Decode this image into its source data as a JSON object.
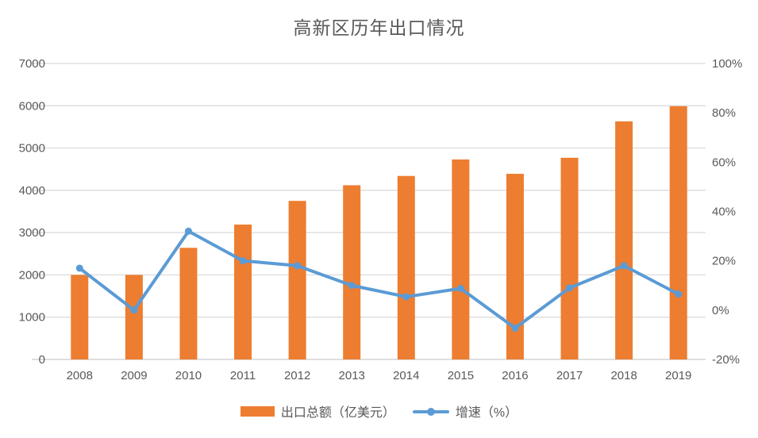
{
  "title": "高新区历年出口情况",
  "colors": {
    "bar": "#ED7D31",
    "line": "#5B9BD5",
    "grid": "#D9D9D9",
    "axis_line": "#C9C9C9",
    "axis_text": "#595959",
    "title_text": "#595959",
    "background": "#FFFFFF"
  },
  "legend": {
    "bar_label": "出口总额（亿美元）",
    "line_label": "增速（%）"
  },
  "chart_data": {
    "type": "combo-bar-line",
    "title": "高新区历年出口情况",
    "categories": [
      "2008",
      "2009",
      "2010",
      "2011",
      "2012",
      "2013",
      "2014",
      "2015",
      "2016",
      "2017",
      "2018",
      "2019"
    ],
    "series": [
      {
        "name": "出口总额（亿美元）",
        "type": "bar",
        "axis": "left",
        "color": "#ED7D31",
        "values": [
          2000,
          2000,
          2640,
          3190,
          3750,
          4120,
          4340,
          4730,
          4390,
          4770,
          5630,
          5990
        ]
      },
      {
        "name": "增速（%）",
        "type": "line",
        "axis": "right",
        "color": "#5B9BD5",
        "values": [
          17,
          0,
          32,
          20,
          18,
          10,
          5.4,
          8.8,
          -7.3,
          9,
          18,
          6.5
        ]
      }
    ],
    "left_axis": {
      "min": 0,
      "max": 7000,
      "step": 1000,
      "tick_labels": [
        "0",
        "1000",
        "2000",
        "3000",
        "4000",
        "5000",
        "6000",
        "7000"
      ]
    },
    "right_axis": {
      "min": -20,
      "max": 100,
      "step": 20,
      "tick_labels": [
        "-20%",
        "0%",
        "20%",
        "40%",
        "60%",
        "80%",
        "100%"
      ]
    },
    "grid": true,
    "legend_position": "bottom"
  }
}
